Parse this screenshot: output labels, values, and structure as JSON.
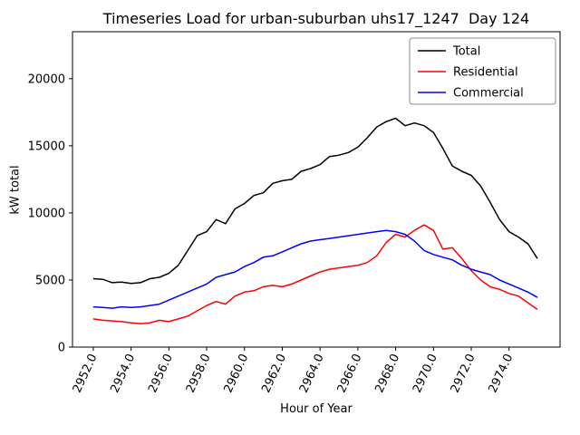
{
  "figure": {
    "background": "#ffffff"
  },
  "chart_data": {
    "type": "line",
    "title": "Timeseries Load for urban-suburban uhs17_1247  Day 124",
    "xlabel": "Hour of Year",
    "ylabel": "kW total",
    "xlim": [
      2950.9,
      2976.7
    ],
    "ylim": [
      0,
      23500
    ],
    "grid": false,
    "legend_position": "upper right",
    "yticks": [
      0,
      5000,
      10000,
      15000,
      20000
    ],
    "ytick_labels": [
      "0",
      "5000",
      "10000",
      "15000",
      "20000"
    ],
    "xticks": [
      2952,
      2954,
      2956,
      2958,
      2960,
      2962,
      2964,
      2966,
      2968,
      2970,
      2972,
      2974
    ],
    "xtick_labels": [
      "2952.0",
      "2954.0",
      "2956.0",
      "2958.0",
      "2960.0",
      "2962.0",
      "2964.0",
      "2966.0",
      "2968.0",
      "2970.0",
      "2972.0",
      "2974.0"
    ],
    "x": [
      2952.0,
      2952.5,
      2953.0,
      2953.5,
      2954.0,
      2954.5,
      2955.0,
      2955.5,
      2956.0,
      2956.5,
      2957.0,
      2957.5,
      2958.0,
      2958.5,
      2959.0,
      2959.5,
      2960.0,
      2960.5,
      2961.0,
      2961.5,
      2962.0,
      2962.5,
      2963.0,
      2963.5,
      2964.0,
      2964.5,
      2965.0,
      2965.5,
      2966.0,
      2966.5,
      2967.0,
      2967.5,
      2968.0,
      2968.5,
      2969.0,
      2969.5,
      2970.0,
      2970.5,
      2971.0,
      2971.5,
      2972.0,
      2972.5,
      2973.0,
      2973.5,
      2974.0,
      2974.5,
      2975.0,
      2975.5
    ],
    "series": [
      {
        "name": "Total",
        "color": "#000000",
        "values": [
          5100,
          5050,
          4800,
          4850,
          4750,
          4800,
          5100,
          5200,
          5500,
          6100,
          7200,
          8300,
          8600,
          9500,
          9200,
          10300,
          10700,
          11300,
          11500,
          12200,
          12400,
          12500,
          13100,
          13300,
          13600,
          14200,
          14300,
          14500,
          14900,
          15600,
          16400,
          16800,
          17050,
          16500,
          16700,
          16500,
          16000,
          14800,
          13500,
          13100,
          12800,
          12000,
          10800,
          9500,
          8600,
          8200,
          7700,
          6600
        ]
      },
      {
        "name": "Residential",
        "color": "#ff0000",
        "values": [
          2100,
          2000,
          1950,
          1900,
          1800,
          1750,
          1800,
          2000,
          1900,
          2100,
          2300,
          2700,
          3100,
          3400,
          3200,
          3800,
          4100,
          4200,
          4500,
          4600,
          4500,
          4700,
          5000,
          5300,
          5600,
          5800,
          5900,
          6000,
          6100,
          6300,
          6800,
          7800,
          8400,
          8200,
          8700,
          9100,
          8700,
          7300,
          7400,
          6600,
          5700,
          5000,
          4500,
          4300,
          4000,
          3800,
          3300,
          2800
        ]
      },
      {
        "name": "Commercial",
        "color": "#0000ff",
        "values": [
          3000,
          2950,
          2900,
          3000,
          2950,
          3000,
          3100,
          3200,
          3500,
          3800,
          4100,
          4400,
          4700,
          5200,
          5400,
          5600,
          6000,
          6300,
          6700,
          6800,
          7100,
          7400,
          7700,
          7900,
          8000,
          8100,
          8200,
          8300,
          8400,
          8500,
          8600,
          8700,
          8600,
          8400,
          7900,
          7200,
          6900,
          6700,
          6500,
          6100,
          5800,
          5600,
          5400,
          5000,
          4700,
          4400,
          4100,
          3700
        ]
      }
    ]
  }
}
